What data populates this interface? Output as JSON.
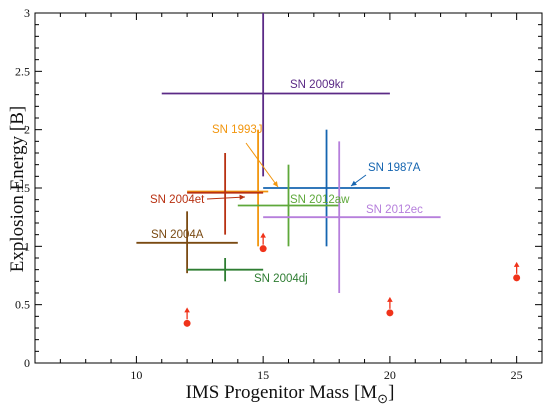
{
  "chart_data": {
    "type": "scatter",
    "title": "",
    "xlabel": "IMS Progenitor Mass [M",
    "xlabel_sub": "⊙",
    "xlabel_close": "]",
    "ylabel": "Explosion Energy [B]",
    "xlim": [
      6,
      26
    ],
    "ylim": [
      0,
      3
    ],
    "x_ticks": [
      10,
      15,
      20,
      25
    ],
    "y_ticks": [
      0,
      0.5,
      1,
      1.5,
      2,
      2.5,
      3
    ],
    "x_tick_labels": [
      "10",
      "15",
      "20",
      "25"
    ],
    "y_tick_labels": [
      "0",
      "0.5",
      "1",
      "1.5",
      "2",
      "2.5",
      "3"
    ],
    "grid": false,
    "supernovae": [
      {
        "name": "SN 2009kr",
        "color": "#5b2a86",
        "x": 15.0,
        "y": 2.31,
        "xerr": [
          11.0,
          20.0
        ],
        "yerr": [
          1.6,
          3.0
        ]
      },
      {
        "name": "SN 1993J",
        "color": "#f2960e",
        "x": 14.8,
        "y": 1.47,
        "xerr": [
          12.0,
          15.2
        ],
        "yerr": [
          1.0,
          2.0
        ]
      },
      {
        "name": "SN 1987A",
        "color": "#1565b0",
        "x": 17.5,
        "y": 1.5,
        "xerr": [
          15.0,
          20.0
        ],
        "yerr": [
          1.0,
          2.0
        ]
      },
      {
        "name": "SN 2004et",
        "color": "#b83112",
        "x": 13.5,
        "y": 1.46,
        "xerr": [
          12.0,
          15.0
        ],
        "yerr": [
          1.1,
          1.8
        ]
      },
      {
        "name": "SN 2012aw",
        "color": "#5ea83a",
        "x": 16.0,
        "y": 1.35,
        "xerr": [
          14.0,
          18.0
        ],
        "yerr": [
          1.0,
          1.7
        ]
      },
      {
        "name": "SN 2012ec",
        "color": "#b67fdc",
        "x": 18.0,
        "y": 1.25,
        "xerr": [
          15.0,
          22.0
        ],
        "yerr": [
          0.6,
          1.9
        ]
      },
      {
        "name": "SN 2004A",
        "color": "#7a4a12",
        "x": 12.0,
        "y": 1.03,
        "xerr": [
          10.0,
          14.0
        ],
        "yerr": [
          0.77,
          1.3
        ]
      },
      {
        "name": "SN 2004dj",
        "color": "#2e7d32",
        "x": 13.5,
        "y": 0.8,
        "xerr": [
          12.0,
          15.0
        ],
        "yerr": [
          0.7,
          0.9
        ]
      }
    ],
    "lower_limits": [
      {
        "x": 12.0,
        "y": 0.34
      },
      {
        "x": 15.0,
        "y": 0.98
      },
      {
        "x": 20.0,
        "y": 0.43
      },
      {
        "x": 25.0,
        "y": 0.73
      }
    ],
    "lower_limit_color": "#f0331a"
  }
}
